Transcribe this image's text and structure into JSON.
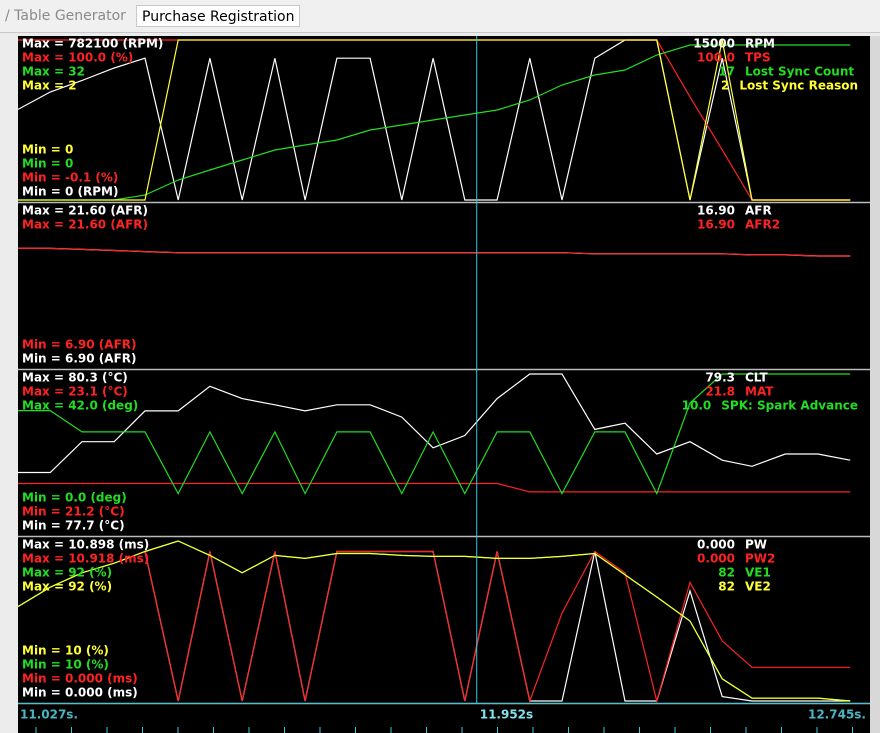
{
  "tabs": [
    "/ Table Generator",
    "Purchase Registration"
  ],
  "time": [
    11.027,
    11.092,
    11.156,
    11.221,
    11.283,
    11.35,
    11.414,
    11.479,
    11.545,
    11.606,
    11.67,
    11.737,
    11.801,
    11.864,
    11.928,
    11.993,
    12.059,
    12.124,
    12.19,
    12.251,
    12.315,
    12.382,
    12.447,
    12.507,
    12.574,
    12.64,
    12.705
  ],
  "time_axis": {
    "start": {
      "value": 11.027,
      "label": "11.027s."
    },
    "cursor": {
      "value": 11.952,
      "label": "11.952s"
    },
    "end": {
      "value": 12.745,
      "label": "12.745s."
    }
  },
  "panels": [
    {
      "traces": [
        {
          "name": "RPM",
          "color": "#ffffff",
          "current": "15000",
          "max": {
            "value": 782100,
            "label": "Max = 782100 (RPM)"
          },
          "min": {
            "value": 0,
            "label": "Min = 0 (RPM)"
          },
          "values": [
            443000,
            528000,
            584000,
            645000,
            693000,
            0,
            693000,
            0,
            693000,
            0,
            693000,
            693000,
            0,
            693000,
            0,
            0,
            693000,
            0,
            693000,
            782100,
            782100,
            0,
            693000,
            0,
            0,
            0,
            0
          ]
        },
        {
          "name": "TPS",
          "color": "#ff2222",
          "current": "100.0",
          "max": {
            "value": 100.0,
            "label": "Max = 100.0 (%)"
          },
          "min": {
            "value": -0.1,
            "label": "Min = -0.1 (%)"
          },
          "values": [
            100,
            100,
            100,
            100,
            100,
            100,
            100,
            100,
            100,
            100,
            100,
            100,
            100,
            100,
            100,
            100,
            100,
            100,
            100,
            100,
            100,
            64.4,
            31.3,
            -0.1,
            -0.1,
            -0.1,
            -0.1
          ]
        },
        {
          "name": "Lost Sync Count",
          "color": "#22dd22",
          "current": "17",
          "max": {
            "value": 32,
            "label": "Max = 32"
          },
          "min": {
            "value": 0,
            "label": "Min = 0"
          },
          "values": [
            0,
            0,
            0,
            0,
            1,
            4,
            6,
            8,
            10,
            11,
            12,
            14,
            15,
            16,
            17,
            18,
            20,
            23,
            25,
            26,
            29,
            31,
            31,
            31,
            31,
            31,
            31
          ]
        },
        {
          "name": "Lost Sync Reason",
          "color": "#ffff33",
          "current": "2",
          "max": {
            "value": 2,
            "label": "Max = 2"
          },
          "min": {
            "value": 0,
            "label": "Min = 0"
          },
          "values": [
            0,
            0,
            0,
            0,
            0,
            2,
            2,
            2,
            2,
            2,
            2,
            2,
            2,
            2,
            2,
            2,
            2,
            2,
            2,
            2,
            2,
            0,
            2,
            0,
            0,
            0,
            0
          ]
        }
      ]
    },
    {
      "traces": [
        {
          "name": "AFR",
          "color": "#ffffff",
          "current": "16.90",
          "max": {
            "value": 21.6,
            "label": "Max = 21.60 (AFR)"
          },
          "min": {
            "value": 6.9,
            "label": "Min = 6.90 (AFR)"
          },
          "values": [
            17.8,
            17.8,
            17.7,
            17.6,
            17.5,
            17.4,
            17.4,
            17.4,
            17.4,
            17.4,
            17.4,
            17.4,
            17.4,
            17.4,
            17.4,
            17.4,
            17.4,
            17.4,
            17.3,
            17.3,
            17.3,
            17.3,
            17.3,
            17.2,
            17.2,
            17.1,
            17.1
          ]
        },
        {
          "name": "AFR2",
          "color": "#ff2222",
          "current": "16.90",
          "max": {
            "value": 21.6,
            "label": "Max = 21.60 (AFR)"
          },
          "min": {
            "value": 6.9,
            "label": "Min = 6.90 (AFR)"
          },
          "values": [
            17.8,
            17.8,
            17.7,
            17.6,
            17.5,
            17.4,
            17.4,
            17.4,
            17.4,
            17.4,
            17.4,
            17.4,
            17.4,
            17.4,
            17.4,
            17.4,
            17.4,
            17.4,
            17.3,
            17.3,
            17.3,
            17.3,
            17.3,
            17.2,
            17.2,
            17.1,
            17.1
          ]
        }
      ]
    },
    {
      "traces": [
        {
          "name": "CLT",
          "color": "#ffffff",
          "current": "79.3",
          "max": {
            "value": 80.3,
            "label": "Max = 80.3 (°C)"
          },
          "min": {
            "value": 77.7,
            "label": "Min = 77.7 (°C)"
          },
          "values": [
            78.7,
            78.7,
            79.2,
            79.2,
            79.7,
            79.7,
            80.1,
            79.9,
            79.8,
            79.7,
            79.8,
            79.8,
            79.6,
            79.1,
            79.3,
            79.9,
            80.3,
            80.3,
            79.4,
            79.5,
            79.0,
            79.2,
            78.9,
            78.8,
            79.0,
            79.0,
            78.9
          ]
        },
        {
          "name": "MAT",
          "color": "#ff2222",
          "current": "21.8",
          "max": {
            "value": 23.1,
            "label": "Max = 23.1 (°C)"
          },
          "min": {
            "value": 21.2,
            "label": "Min = 21.2 (°C)"
          },
          "values": [
            21.8,
            21.8,
            21.8,
            21.8,
            21.8,
            21.8,
            21.8,
            21.8,
            21.8,
            21.8,
            21.8,
            21.8,
            21.8,
            21.8,
            21.8,
            21.8,
            21.7,
            21.7,
            21.7,
            21.7,
            21.7,
            21.7,
            21.7,
            21.7,
            21.7,
            21.7,
            21.7
          ]
        },
        {
          "name": "SPK: Spark Advance",
          "color": "#22dd22",
          "current": "10.0",
          "max": {
            "value": 42.0,
            "label": "Max = 42.0 (deg)"
          },
          "min": {
            "value": 0.0,
            "label": "Min = 0.0 (deg)"
          },
          "values": [
            32.4,
            32.4,
            26.8,
            26.8,
            26.8,
            10.6,
            26.8,
            10.6,
            26.8,
            10.6,
            26.8,
            26.8,
            10.6,
            26.8,
            10.6,
            26.8,
            26.8,
            10.6,
            26.8,
            26.8,
            10.6,
            34.4,
            42,
            42,
            42,
            42,
            42
          ]
        }
      ]
    },
    {
      "traces": [
        {
          "name": "PW",
          "color": "#ffffff",
          "current": "0.000",
          "max": {
            "value": 10.898,
            "label": "Max = 10.898 (ms)"
          },
          "min": {
            "value": 0,
            "label": "Min = 0.000 (ms)"
          },
          "values": [
            null,
            null,
            null,
            null,
            10.18,
            0,
            10.18,
            0,
            10.18,
            0,
            10.18,
            10.18,
            10.18,
            10.18,
            0,
            10.18,
            0,
            0,
            10.18,
            0,
            0,
            7.5,
            0.3,
            0,
            0,
            0,
            0
          ]
        },
        {
          "name": "PW2",
          "color": "#ff2222",
          "current": "0.000",
          "max": {
            "value": 10.918,
            "label": "Max = 10.918 (ms)"
          },
          "min": {
            "value": 0,
            "label": "Min = 0.000 (ms)"
          },
          "values": [
            null,
            null,
            null,
            null,
            10.2,
            0,
            10.2,
            0,
            10.2,
            0,
            10.2,
            10.2,
            10.2,
            10.2,
            0,
            10.2,
            0,
            6,
            10.2,
            8.75,
            0,
            8.1,
            4.1,
            2.3,
            2.3,
            2.3,
            2.3
          ]
        },
        {
          "name": "VE1",
          "color": "#22dd22",
          "current": "82",
          "max": {
            "value": 92,
            "label": "Max = 92 (%)"
          },
          "min": {
            "value": 10,
            "label": "Min = 10 (%)"
          },
          "values": [
            58.4,
            68.3,
            75.7,
            80.6,
            86.6,
            92,
            84.6,
            75.7,
            84.6,
            83.1,
            85.6,
            85.6,
            84.6,
            84.1,
            84.1,
            83.1,
            83.1,
            84.1,
            85.6,
            74.7,
            63.3,
            51,
            21.4,
            11.5,
            11.5,
            11.5,
            10
          ]
        },
        {
          "name": "VE2",
          "color": "#ffff33",
          "current": "82",
          "max": {
            "value": 92,
            "label": "Max = 92 (%)"
          },
          "min": {
            "value": 10,
            "label": "Min = 10 (%)"
          },
          "values": [
            58.4,
            68.3,
            75.7,
            80.6,
            86.6,
            92,
            84.6,
            75.7,
            84.6,
            83.1,
            85.6,
            85.6,
            84.6,
            84.1,
            84.1,
            83.1,
            83.1,
            84.1,
            85.6,
            74.7,
            63.3,
            51,
            21.4,
            11.5,
            11.5,
            11.5,
            10
          ]
        }
      ]
    }
  ]
}
